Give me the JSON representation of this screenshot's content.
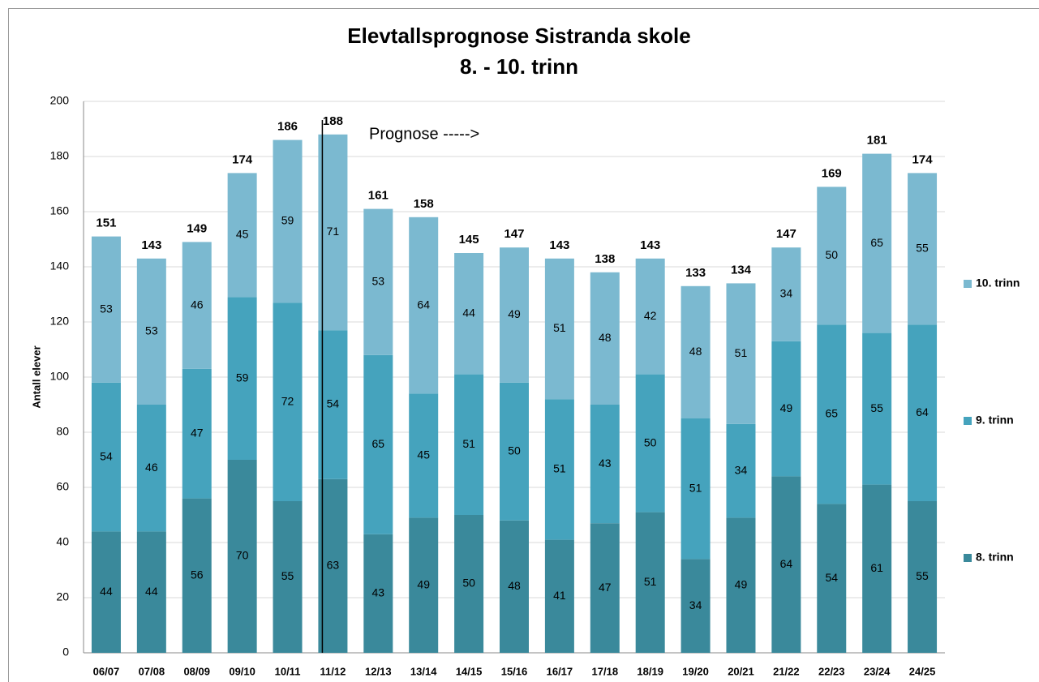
{
  "chart_data": {
    "type": "stacked_bar",
    "title": "Elevtallsprognose Sistranda skole",
    "subtitle": "8. - 10. trinn",
    "y_label": "Antall elever",
    "annotation": "Prognose ----->",
    "categories": [
      "06/07",
      "07/08",
      "08/09",
      "09/10",
      "10/11",
      "11/12",
      "12/13",
      "13/14",
      "14/15",
      "15/16",
      "16/17",
      "17/18",
      "18/19",
      "19/20",
      "20/21",
      "21/22",
      "22/23",
      "23/24",
      "24/25"
    ],
    "series": [
      {
        "name": "8. trinn",
        "color": "#3a899b",
        "values": [
          44,
          44,
          56,
          70,
          55,
          63,
          43,
          49,
          50,
          48,
          41,
          47,
          51,
          34,
          49,
          64,
          54,
          61,
          55
        ]
      },
      {
        "name": "9. trinn",
        "color": "#45a3bd",
        "values": [
          54,
          46,
          47,
          59,
          72,
          54,
          65,
          45,
          51,
          50,
          51,
          43,
          50,
          51,
          34,
          49,
          65,
          55,
          64
        ]
      },
      {
        "name": "10. trinn",
        "color": "#7bb9d0",
        "values": [
          53,
          53,
          46,
          45,
          59,
          71,
          53,
          64,
          44,
          49,
          51,
          48,
          42,
          48,
          51,
          34,
          50,
          65,
          55
        ]
      }
    ],
    "totals": [
      151,
      143,
      149,
      174,
      186,
      188,
      161,
      158,
      145,
      147,
      143,
      138,
      143,
      133,
      134,
      147,
      169,
      181,
      174
    ],
    "ylim": [
      0,
      200
    ],
    "yticks": [
      0,
      20,
      40,
      60,
      80,
      100,
      120,
      140,
      160,
      180,
      200
    ],
    "grid": true,
    "legend": "right"
  }
}
